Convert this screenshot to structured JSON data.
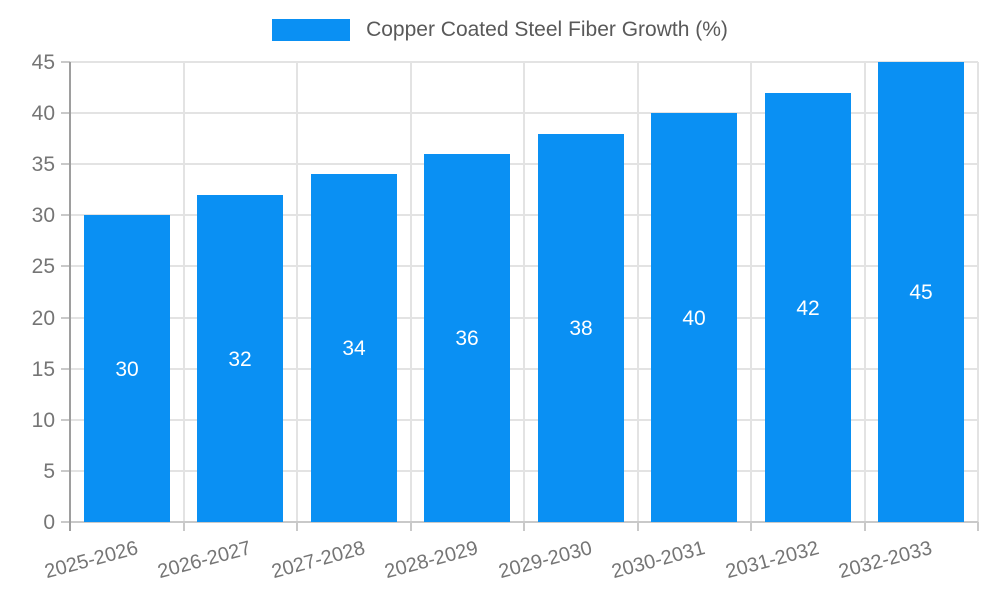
{
  "chart_data": {
    "type": "bar",
    "title": "",
    "legend": {
      "label": "Copper Coated Steel Fiber Growth (%)",
      "position": "top"
    },
    "categories": [
      "2025-2026",
      "2026-2027",
      "2027-2028",
      "2028-2029",
      "2029-2030",
      "2030-2031",
      "2031-2032",
      "2032-2033"
    ],
    "values": [
      30,
      32,
      34,
      36,
      38,
      40,
      42,
      45
    ],
    "value_labels": [
      "30",
      "32",
      "34",
      "36",
      "38",
      "40",
      "42",
      "45"
    ],
    "xlabel": "",
    "ylabel": "",
    "ylim": [
      0,
      45
    ],
    "yticks": [
      0,
      5,
      10,
      15,
      20,
      25,
      30,
      35,
      40,
      45
    ],
    "grid": true,
    "x_label_rotation_deg": -15,
    "colors": {
      "bar": "#0a90f3",
      "value_label": "#ffffff",
      "axis_text": "#757575",
      "legend_text": "#595959",
      "gridline": "#e3e3e3",
      "y_axis_line": "#9e9e9e",
      "tick": "#c9c9c9"
    }
  }
}
